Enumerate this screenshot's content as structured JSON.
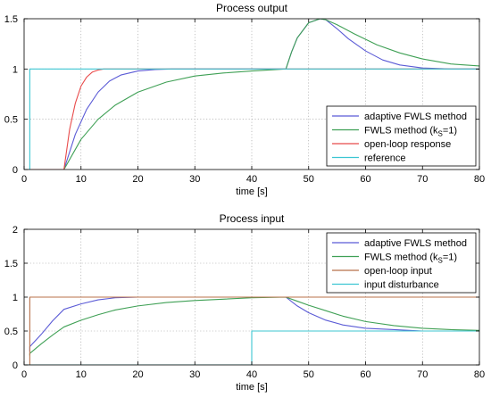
{
  "chart_data": [
    {
      "type": "line",
      "title": "Process output",
      "xlabel": "time [s]",
      "ylabel": "",
      "xlim": [
        0,
        80
      ],
      "ylim": [
        0,
        1.5
      ],
      "xticks": [
        0,
        10,
        20,
        30,
        40,
        50,
        60,
        70,
        80
      ],
      "yticks": [
        0,
        0.5,
        1,
        1.5
      ],
      "grid": true,
      "legend_position": "bottom-right",
      "series": [
        {
          "name": "adaptive FWLS method",
          "color": "#5b5bd6",
          "x": [
            0,
            7,
            9,
            11,
            13,
            15,
            17,
            20,
            23,
            26,
            30,
            35,
            40,
            46,
            47,
            48,
            50,
            52,
            53,
            55,
            57,
            60,
            63,
            66,
            70,
            75,
            80
          ],
          "y": [
            0,
            0,
            0.35,
            0.6,
            0.77,
            0.88,
            0.94,
            0.98,
            0.995,
            1.0,
            1.0,
            1.0,
            1.0,
            1.0,
            1.17,
            1.31,
            1.46,
            1.5,
            1.49,
            1.4,
            1.3,
            1.18,
            1.09,
            1.04,
            1.01,
            1.0,
            1.0
          ]
        },
        {
          "name": "FWLS method (kS=1)",
          "legend_parts": [
            "FWLS method (k",
            "S",
            "=1)"
          ],
          "color": "#3fa055",
          "x": [
            0,
            7,
            10,
            13,
            16,
            20,
            25,
            30,
            35,
            40,
            46,
            47,
            48,
            50,
            52,
            53,
            55,
            58,
            62,
            66,
            70,
            75,
            80
          ],
          "y": [
            0,
            0,
            0.3,
            0.5,
            0.64,
            0.77,
            0.87,
            0.93,
            0.96,
            0.98,
            1.0,
            1.17,
            1.31,
            1.46,
            1.5,
            1.49,
            1.44,
            1.35,
            1.24,
            1.16,
            1.1,
            1.05,
            1.03
          ]
        },
        {
          "name": "open-loop response",
          "color": "#e84a4a",
          "x": [
            0,
            7,
            8,
            9,
            10,
            11,
            12,
            13,
            14,
            16,
            80
          ],
          "y": [
            0,
            0,
            0.4,
            0.66,
            0.83,
            0.92,
            0.97,
            0.99,
            1.0,
            1.0,
            1.0
          ]
        },
        {
          "name": "reference",
          "color": "#3cc6d2",
          "x": [
            0,
            1,
            1,
            80
          ],
          "y": [
            0,
            0,
            1,
            1
          ]
        }
      ]
    },
    {
      "type": "line",
      "title": "Process input",
      "xlabel": "time [s]",
      "ylabel": "",
      "xlim": [
        0,
        80
      ],
      "ylim": [
        0,
        2
      ],
      "xticks": [
        0,
        10,
        20,
        30,
        40,
        50,
        60,
        70,
        80
      ],
      "yticks": [
        0,
        0.5,
        1,
        1.5,
        2
      ],
      "grid": true,
      "legend_position": "top-right",
      "series": [
        {
          "name": "adaptive FWLS method",
          "color": "#5b5bd6",
          "x": [
            1,
            1.01,
            3,
            5,
            7,
            10,
            13,
            16,
            20,
            25,
            30,
            40,
            46,
            48,
            50,
            53,
            56,
            60,
            65,
            70,
            80
          ],
          "y": [
            0.2,
            0.27,
            0.45,
            0.65,
            0.82,
            0.9,
            0.96,
            0.99,
            1.0,
            1.0,
            1.0,
            1.0,
            1.0,
            0.87,
            0.77,
            0.66,
            0.59,
            0.54,
            0.52,
            0.5,
            0.5
          ]
        },
        {
          "name": "FWLS method (kS=1)",
          "legend_parts": [
            "FWLS method (k",
            "S",
            "=1)"
          ],
          "color": "#3fa055",
          "x": [
            1,
            1.01,
            3,
            5,
            7,
            10,
            13,
            16,
            20,
            25,
            30,
            35,
            40,
            46,
            48,
            50,
            53,
            56,
            60,
            65,
            70,
            75,
            80
          ],
          "y": [
            0.14,
            0.17,
            0.31,
            0.44,
            0.56,
            0.66,
            0.74,
            0.81,
            0.87,
            0.92,
            0.95,
            0.97,
            0.99,
            1.0,
            0.94,
            0.88,
            0.8,
            0.72,
            0.64,
            0.58,
            0.54,
            0.52,
            0.51
          ]
        },
        {
          "name": "open-loop input",
          "color": "#b8704a",
          "x": [
            0,
            1,
            1,
            80
          ],
          "y": [
            0,
            0,
            1,
            1
          ]
        },
        {
          "name": "input disturbance",
          "color": "#3cc6d2",
          "x": [
            0,
            40,
            40,
            80
          ],
          "y": [
            0,
            0,
            0.5,
            0.5
          ]
        }
      ]
    }
  ]
}
